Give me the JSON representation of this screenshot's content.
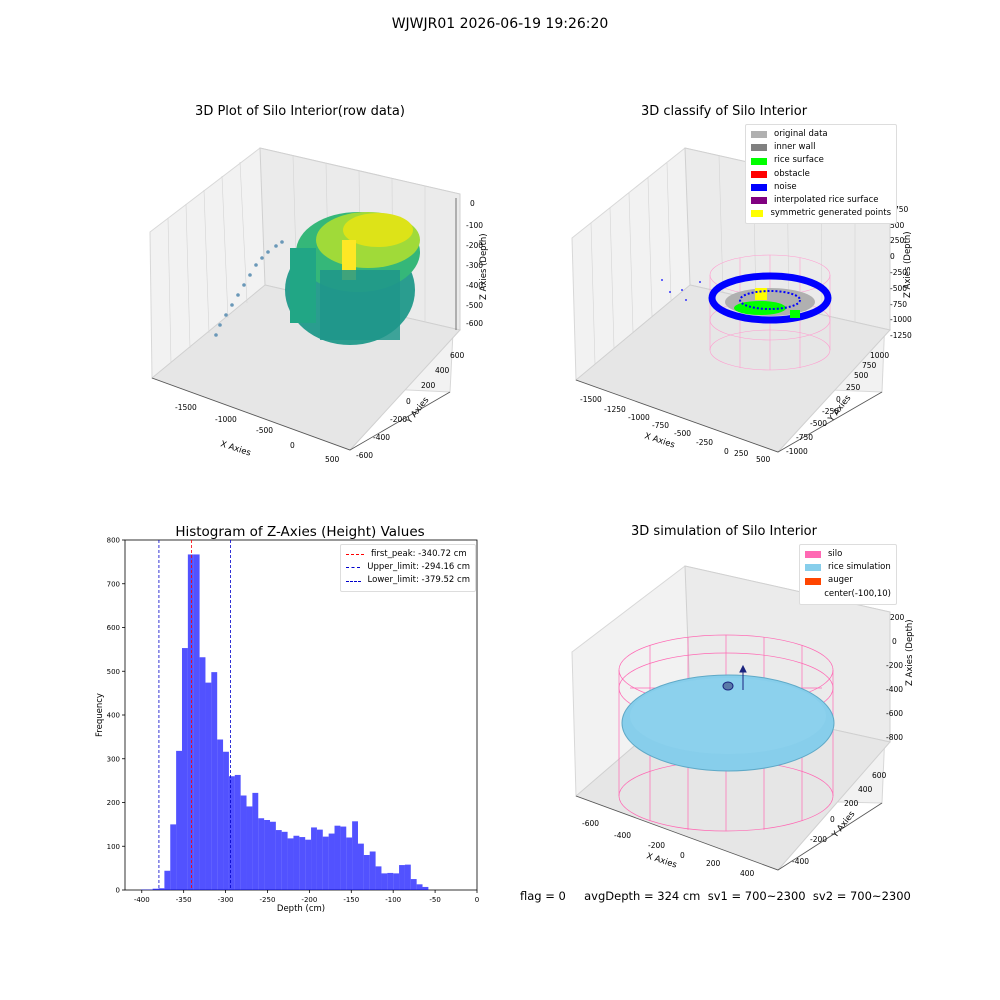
{
  "figure": {
    "suptitle": "WJWJR01 2026-06-19 19:26:20",
    "status_line": "flag = 0     avgDepth = 324 cm  sv1 = 700~2300  sv2 = 700~2300"
  },
  "panels": {
    "raw": {
      "title": "3D Plot of Silo Interior(row data)",
      "xlabel": "X Axies",
      "ylabel": "Y Axies",
      "zlabel": "Z Axies (Depth)",
      "xticks": [
        "-1500",
        "-1000",
        "-500",
        "0",
        "500"
      ],
      "yticks": [
        "-600",
        "-400",
        "-200",
        "0",
        "200",
        "400",
        "600"
      ],
      "zticks": [
        "0",
        "-100",
        "-200",
        "-300",
        "-400",
        "-500",
        "-600"
      ]
    },
    "classify": {
      "title": "3D classify of Silo Interior",
      "xlabel": "X Axies",
      "ylabel": "Y Axies",
      "zlabel": "Z Axies (Depth)",
      "xticks": [
        "-1500",
        "-1250",
        "-1000",
        "-750",
        "-500",
        "-250",
        "0",
        "250",
        "500"
      ],
      "yticks": [
        "-1000",
        "-750",
        "-500",
        "-250",
        "0",
        "250",
        "500",
        "750",
        "1000"
      ],
      "zticks": [
        "750",
        "500",
        "250",
        "0",
        "-250",
        "-500",
        "-750",
        "-1000",
        "-1250"
      ],
      "legend": [
        {
          "label": "original data",
          "color": "#b0b0b0"
        },
        {
          "label": "inner wall",
          "color": "#808080"
        },
        {
          "label": "rice surface",
          "color": "#00ff00"
        },
        {
          "label": "obstacle",
          "color": "#ff0000"
        },
        {
          "label": "noise",
          "color": "#0000ff"
        },
        {
          "label": "interpolated rice surface",
          "color": "#800080"
        },
        {
          "label": "symmetric generated points",
          "color": "#ffff00"
        }
      ]
    },
    "simulation": {
      "title": "3D simulation of Silo Interior",
      "xlabel": "X Axies",
      "ylabel": "Y Axies",
      "zlabel": "Z Axies (Depth)",
      "xticks": [
        "-600",
        "-400",
        "-200",
        "0",
        "200",
        "400"
      ],
      "yticks": [
        "-400",
        "-200",
        "0",
        "200",
        "400",
        "600"
      ],
      "zticks": [
        "200",
        "0",
        "-200",
        "-400",
        "-600",
        "-800"
      ],
      "legend": [
        {
          "label": "silo",
          "color": "#ff69b4"
        },
        {
          "label": "rice simulation",
          "color": "#87ceeb"
        },
        {
          "label": "auger",
          "color": "#ff4500"
        },
        {
          "label": "center(-100,10)",
          "color": ""
        }
      ]
    }
  },
  "chart_data": {
    "type": "bar",
    "title": "Histogram of Z-Axies (Height) Values",
    "xlabel": "Depth (cm)",
    "ylabel": "Frequency",
    "xlim": [
      -420,
      0
    ],
    "ylim": [
      0,
      800
    ],
    "xticks": [
      -400,
      -350,
      -300,
      -250,
      -200,
      -150,
      -100,
      -50,
      0
    ],
    "yticks": [
      0,
      100,
      200,
      300,
      400,
      500,
      600,
      700,
      800
    ],
    "bin_width": 7,
    "bin_start": -401,
    "values": [
      1,
      1,
      3,
      4,
      44,
      150,
      318,
      553,
      767,
      767,
      532,
      474,
      498,
      344,
      316,
      260,
      263,
      216,
      191,
      222,
      164,
      160,
      156,
      137,
      133,
      118,
      124,
      121,
      115,
      143,
      138,
      122,
      129,
      147,
      145,
      120,
      157,
      106,
      80,
      88,
      54,
      38,
      39,
      38,
      57,
      58,
      25,
      13,
      7
    ],
    "color": "#0000ff",
    "lines": [
      {
        "label": "first_peak: -340.72 cm",
        "x": -340.72,
        "color": "#ff0000"
      },
      {
        "label": "Upper_limit: -294.16 cm",
        "x": -294.16,
        "color": "#0000cc"
      },
      {
        "label": "Lower_limit: -379.52 cm",
        "x": -379.52,
        "color": "#0000cc"
      }
    ],
    "legend_position": "top-right"
  }
}
